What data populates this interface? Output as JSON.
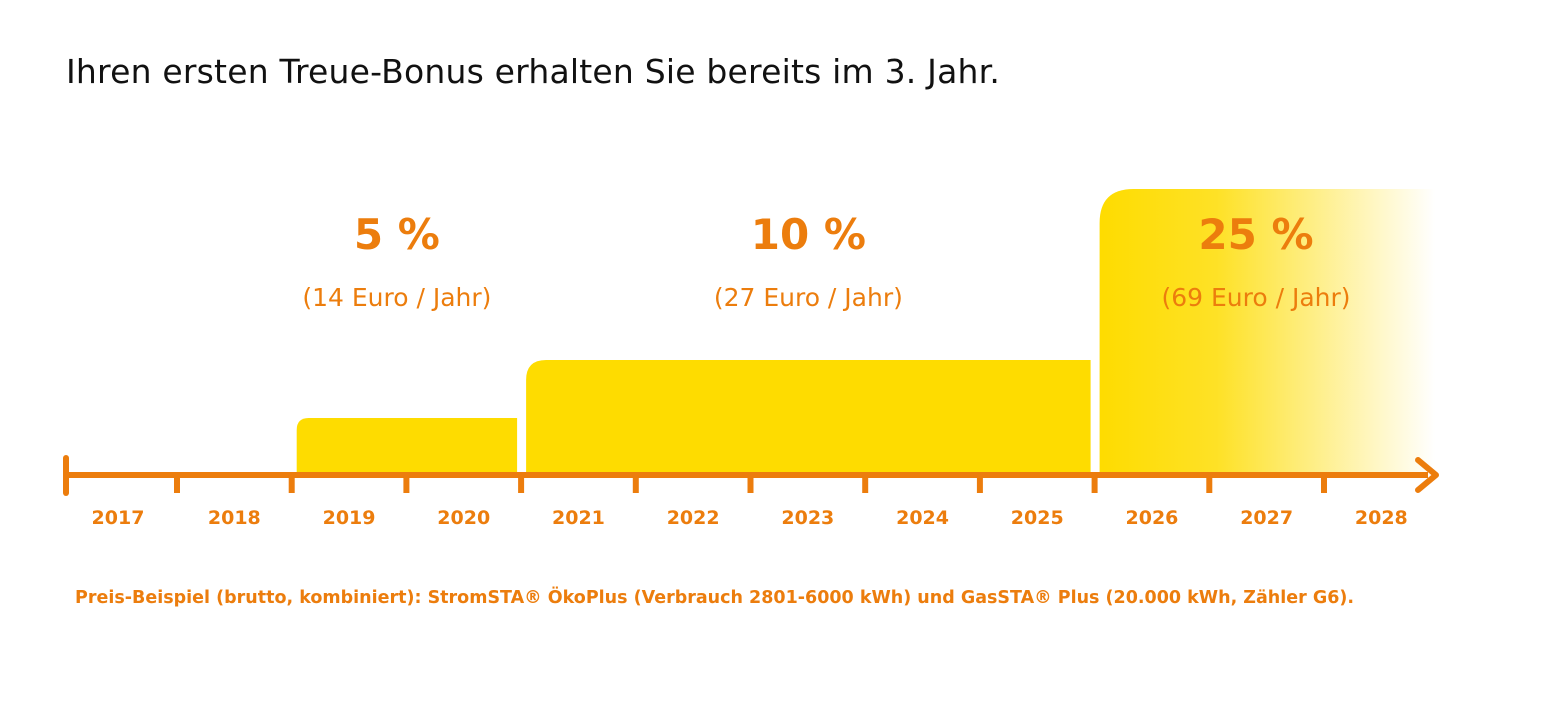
{
  "title": "Ihren ersten Treue-Bonus erhalten Sie bereits im 3. Jahr.",
  "footnote": "Preis-Beispiel (brutto, kombiniert): StromSTA® ÖkoPlus (Verbrauch 2801-6000 kWh) und GasSTA® Plus (20.000 kWh, Zähler G6).",
  "colors": {
    "axis": "#ec7d0d",
    "bar": "#fedc00",
    "label": "#ec7d0d",
    "title": "#111111"
  },
  "chart_data": {
    "type": "bar",
    "title": "Ihren ersten Treue-Bonus erhalten Sie bereits im 3. Jahr.",
    "x": [
      "2017",
      "2018",
      "2019",
      "2020",
      "2021",
      "2022",
      "2023",
      "2024",
      "2025",
      "2026",
      "2027",
      "2028"
    ],
    "unit": "%",
    "series": [
      {
        "start": "2019",
        "end": "2020",
        "value": 5,
        "label": "5 %",
        "sublabel": "(14 Euro / Jahr)"
      },
      {
        "start": "2021",
        "end": "2025",
        "value": 10,
        "label": "10 %",
        "sublabel": "(27 Euro / Jahr)"
      },
      {
        "start": "2026",
        "end": "2028",
        "value": 25,
        "label": "25 %",
        "sublabel": "(69 Euro / Jahr)",
        "fade": true
      }
    ]
  }
}
